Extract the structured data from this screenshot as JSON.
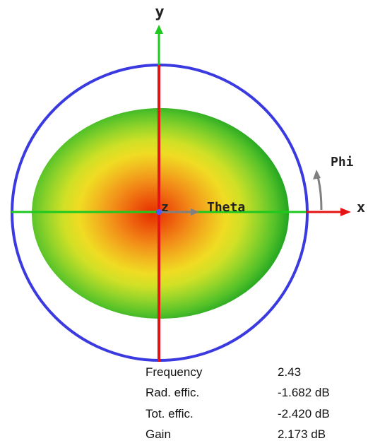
{
  "axes": {
    "x_label": "x",
    "y_label": "y",
    "z_label": "z",
    "theta_label": "Theta",
    "phi_label": "Phi"
  },
  "colors": {
    "circle": "#3a3ae0",
    "axis_red": "#e41414",
    "axis_green": "#1fc81f",
    "arrow_gray": "#808080",
    "center_blue": "#4a5cff",
    "gradient": [
      "#e62c00",
      "#ed5a0c",
      "#f28a18",
      "#f2b81f",
      "#f0dc23",
      "#cfe026",
      "#94d42a",
      "#55c229",
      "#22a521"
    ]
  },
  "info": {
    "rows": [
      {
        "label": "Frequency",
        "value": "2.43"
      },
      {
        "label": "Rad. effic.",
        "value": "-1.682 dB"
      },
      {
        "label": "Tot. effic.",
        "value": "-2.420 dB"
      },
      {
        "label": "Gain",
        "value": "2.173 dB"
      }
    ]
  }
}
